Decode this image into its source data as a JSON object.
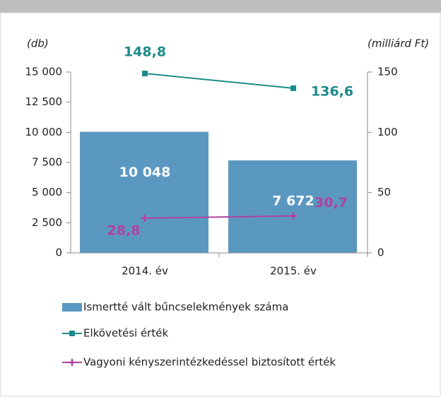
{
  "chart_data": {
    "type": "bar",
    "categories": [
      "2014. év",
      "2015. év"
    ],
    "y_label": "(db)",
    "y2_label": "(milliárd Ft)",
    "ylim": [
      0,
      15000
    ],
    "yticks": [
      0,
      {
        "value": 2500,
        "label": "2 500"
      },
      {
        "value": 5000,
        "label": "5 000"
      },
      {
        "value": 7500,
        "label": "7 500"
      },
      {
        "value": 10000,
        "label": "10 000"
      },
      {
        "value": 12500,
        "label": "12 500"
      },
      {
        "value": 15000,
        "label": "15 000"
      }
    ],
    "y2lim": [
      0,
      150
    ],
    "y2ticks": [
      0,
      50,
      100,
      150
    ],
    "legend": "bottom",
    "series": [
      {
        "name": "Ismertté vált bűncselekmények száma",
        "type": "bar",
        "color": "#5b98c1",
        "values": [
          10048,
          7672
        ],
        "value_labels": [
          "10 048",
          "7 672"
        ]
      },
      {
        "name": "Elkövetési érték",
        "type": "line",
        "axis": "y2",
        "color": "#1d8b8b",
        "values": [
          148.8,
          136.6
        ],
        "value_labels": [
          "148,8",
          "136,6"
        ]
      },
      {
        "name": "Vagyoni kényszerintézkedéssel biztosított érték",
        "type": "line",
        "axis": "y2",
        "color": "#b0439f",
        "values": [
          28.8,
          30.7
        ],
        "value_labels": [
          "28,8",
          "30,7"
        ]
      }
    ]
  }
}
